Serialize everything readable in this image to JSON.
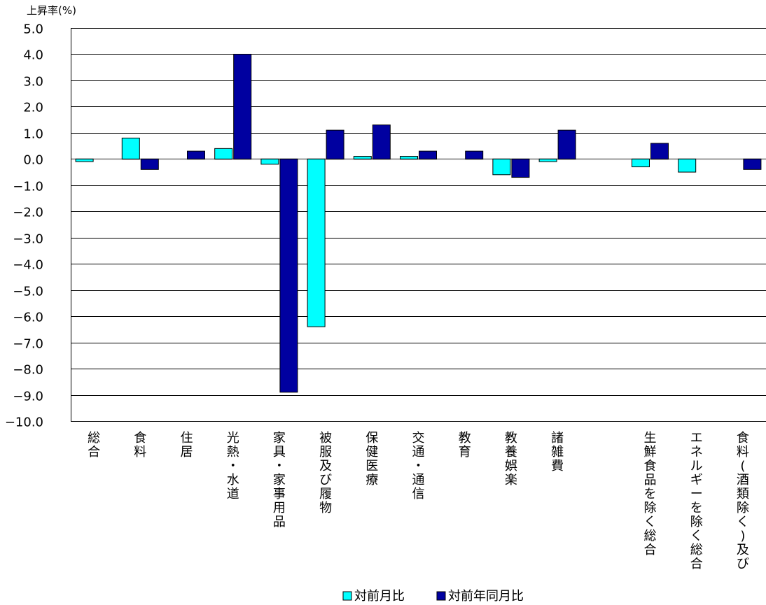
{
  "chart_data": {
    "type": "bar",
    "ylabel": "上昇率(%)",
    "ylim": [
      -10,
      5
    ],
    "ytick_step": 1,
    "grid": true,
    "legend_position": "bottom",
    "categories": [
      "総合",
      "食料",
      "住居",
      "光熱・水道",
      "家具・家事用品",
      "被服及び履物",
      "保健医療",
      "交通・通信",
      "教育",
      "教養娯楽",
      "諸雑費",
      "",
      "生鮮食品を除く総合",
      "エネルギーを除く総合",
      "食料(酒類除く)及び"
    ],
    "series": [
      {
        "name": "対前月比",
        "color": "#00ffff",
        "values": [
          -0.1,
          0.8,
          0.0,
          0.4,
          -0.2,
          -6.4,
          0.1,
          0.1,
          0.0,
          -0.6,
          -0.1,
          null,
          -0.3,
          -0.5,
          0.0
        ]
      },
      {
        "name": "対前年同月比",
        "color": "#0000a0",
        "values": [
          0.0,
          -0.4,
          0.3,
          4.0,
          -8.9,
          1.1,
          1.3,
          0.3,
          0.3,
          -0.7,
          1.1,
          null,
          0.6,
          0.0,
          -0.4
        ]
      }
    ]
  }
}
